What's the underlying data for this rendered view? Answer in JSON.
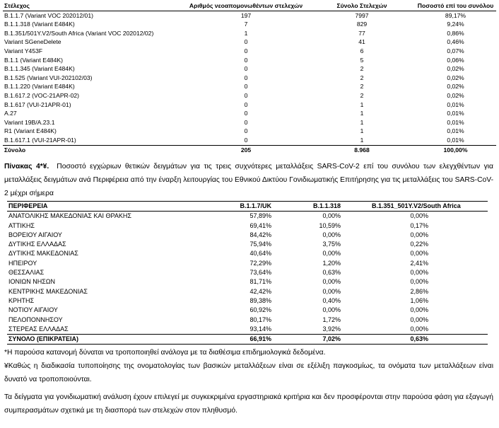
{
  "table1": {
    "header": [
      "Στέλεχος",
      "Αριθμός νεοαπομονωθέντων στελεχών",
      "Σύνολο Στελεχών",
      "Ποσοστό επί του συνόλου"
    ],
    "rows": [
      [
        "B.1.1.7 (Variant VOC 202012/01)",
        "197",
        "7997",
        "89,17%"
      ],
      [
        "B.1.1.318 (Variant E484K)",
        "7",
        "829",
        "9,24%"
      ],
      [
        "B.1.351/501Y.V2/South Africa (Variant VOC 202012/02)",
        "1",
        "77",
        "0,86%"
      ],
      [
        "Variant SGeneDelete",
        "0",
        "41",
        "0,46%"
      ],
      [
        "Variant Y453F",
        "0",
        "6",
        "0,07%"
      ],
      [
        "B.1.1 (Variant E484K)",
        "0",
        "5",
        "0,06%"
      ],
      [
        "B.1.1.345 (Variant E484K)",
        "0",
        "2",
        "0,02%"
      ],
      [
        "B.1.525 (Variant VUI-202102/03)",
        "0",
        "2",
        "0,02%"
      ],
      [
        "B.1.1.220 (Variant E484K)",
        "0",
        "2",
        "0,02%"
      ],
      [
        "B.1.617.2 (VOC-21APR-02)",
        "0",
        "2",
        "0,02%"
      ],
      [
        "B.1.617 (VUI-21APR-01)",
        "0",
        "1",
        "0,01%"
      ],
      [
        "A.27",
        "0",
        "1",
        "0,01%"
      ],
      [
        "Variant 19B/A.23.1",
        "0",
        "1",
        "0,01%"
      ],
      [
        "R1 (Variant E484K)",
        "0",
        "1",
        "0,01%"
      ],
      [
        "B.1.617.1 (VUI-21APR-01)",
        "0",
        "1",
        "0,01%"
      ]
    ],
    "total": [
      "Σύνολο",
      "205",
      "8.968",
      "100,00%"
    ]
  },
  "caption": {
    "label": "Πίνακας 4*¥.",
    "text": "Ποσοστό εγχώριων θετικών δειγμάτων για τις τρεις συχνότερες μεταλλάξεις SARS-CoV-2 επί του συνόλου των ελεγχθέντων για μεταλλάξεις δειγμάτων ανά Περιφέρεια από την έναρξη λειτουργίας του Εθνικού Δικτύου Γονιδιωματικής Επιτήρησης για τις μεταλλάξεις του SARS-CoV-2 μέχρι σήμερα"
  },
  "table2": {
    "header": [
      "ΠΕΡΙΦΕΡΕΙΑ",
      "B.1.1.7/UK",
      "B.1.1.318",
      "B.1.351_501Y.V2/South Africa"
    ],
    "rows": [
      [
        "ΑΝΑΤΟΛΙΚΗΣ ΜΑΚΕΔΟΝΙΑΣ ΚΑΙ ΘΡΑΚΗΣ",
        "57,89%",
        "0,00%",
        "0,00%"
      ],
      [
        "ΑΤΤΙΚΗΣ",
        "69,41%",
        "10,59%",
        "0,17%"
      ],
      [
        "ΒΟΡΕΙΟΥ ΑΙΓΑΙΟΥ",
        "84,42%",
        "0,00%",
        "0,00%"
      ],
      [
        "ΔΥΤΙΚΗΣ ΕΛΛΑΔΑΣ",
        "75,94%",
        "3,75%",
        "0,22%"
      ],
      [
        "ΔΥΤΙΚΗΣ ΜΑΚΕΔΟΝΙΑΣ",
        "40,64%",
        "0,00%",
        "0,00%"
      ],
      [
        "ΗΠΕΙΡΟΥ",
        "72,29%",
        "1,20%",
        "2,41%"
      ],
      [
        "ΘΕΣΣΑΛΙΑΣ",
        "73,64%",
        "0,63%",
        "0,00%"
      ],
      [
        "ΙΟΝΙΩΝ ΝΗΣΩΝ",
        "81,71%",
        "0,00%",
        "0,00%"
      ],
      [
        "ΚΕΝΤΡΙΚΗΣ ΜΑΚΕΔΟΝΙΑΣ",
        "42,42%",
        "0,00%",
        "2,86%"
      ],
      [
        "ΚΡΗΤΗΣ",
        "89,38%",
        "0,40%",
        "1,06%"
      ],
      [
        "ΝΟΤΙΟΥ ΑΙΓΑΙΟΥ",
        "60,92%",
        "0,00%",
        "0,00%"
      ],
      [
        "ΠΕΛΟΠΟΝΝΗΣΟΥ",
        "80,17%",
        "1,72%",
        "0,00%"
      ],
      [
        "ΣΤΕΡΕΑΣ ΕΛΛΑΔΑΣ",
        "93,14%",
        "3,92%",
        "0,00%"
      ]
    ],
    "total": [
      "ΣΥΝΟΛΟ (ΕΠΙΚΡΑΤΕΙΑ)",
      "66,91%",
      "7,02%",
      "0,63%"
    ]
  },
  "notes": [
    "*Η παρούσα κατανομή δύναται να τροποποιηθεί ανάλογα με τα διαθέσιμα επιδημιολογικά δεδομένα.",
    "¥Καθώς η διαδικασία τυποποίησης της ονοματολογίας των βασικών μεταλλάξεων είναι σε εξέλιξη παγκοσμίως, τα ονόματα των μεταλλάξεων είναι δυνατό να τροποποιούνται."
  ],
  "paragraph": "Τα δείγματα για γονιδιωματική ανάλυση έχουν επιλεγεί με συγκεκριμένα εργαστηριακά κριτήρια και δεν προσφέρονται στην παρούσα φάση για εξαγωγή συμπερασμάτων σχετικά με τη διασπορά των στελεχών στον πληθυσμό."
}
